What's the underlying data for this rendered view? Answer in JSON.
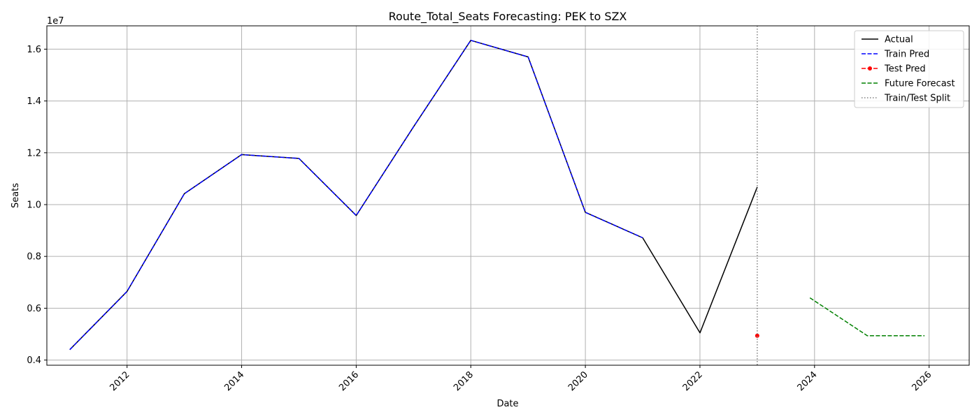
{
  "chart_data": {
    "type": "line",
    "title": "Route_Total_Seats Forecasting: PEK to SZX",
    "xlabel": "Date",
    "ylabel": "Seats",
    "y_offset_label": "1e7",
    "xlim": [
      2010.6,
      2026.7
    ],
    "ylim": [
      3800000,
      16900000
    ],
    "x_ticks": [
      2012,
      2014,
      2016,
      2018,
      2020,
      2022,
      2024,
      2026
    ],
    "x_tick_labels": [
      "2012",
      "2014",
      "2016",
      "2018",
      "2020",
      "2022",
      "2024",
      "2026"
    ],
    "y_ticks": [
      4000000,
      6000000,
      8000000,
      10000000,
      12000000,
      14000000,
      16000000
    ],
    "y_tick_labels": [
      "0.4",
      "0.6",
      "0.8",
      "1.0",
      "1.2",
      "1.4",
      "1.6"
    ],
    "grid": true,
    "legend_position": "top-right",
    "split_x": 2023,
    "series": [
      {
        "name": "Actual",
        "color": "#000000",
        "style": "solid",
        "x": [
          2011,
          2012,
          2013,
          2014,
          2015,
          2016,
          2017,
          2018,
          2019,
          2020,
          2021,
          2022,
          2023
        ],
        "values": [
          4400000,
          6650000,
          10420000,
          11930000,
          11780000,
          9580000,
          13000000,
          16340000,
          15700000,
          9700000,
          8720000,
          5050000,
          10680000
        ]
      },
      {
        "name": "Train Pred",
        "color": "#0000ff",
        "style": "dashed",
        "x": [
          2011,
          2012,
          2013,
          2014,
          2015,
          2016,
          2017,
          2018,
          2019,
          2020,
          2021
        ],
        "values": [
          4400000,
          6650000,
          10420000,
          11930000,
          11780000,
          9580000,
          13000000,
          16340000,
          15700000,
          9700000,
          8720000
        ]
      },
      {
        "name": "Test Pred",
        "color": "#ff0000",
        "style": "dashed-marker",
        "x": [
          2023
        ],
        "values": [
          4940000
        ]
      },
      {
        "name": "Future Forecast",
        "color": "#008000",
        "style": "dashed",
        "x": [
          2023.92,
          2024.92,
          2025.92
        ],
        "values": [
          6400000,
          4940000,
          4940000
        ]
      },
      {
        "name": "Train/Test Split",
        "color": "#808080",
        "style": "dotted",
        "x": [],
        "values": []
      }
    ]
  }
}
